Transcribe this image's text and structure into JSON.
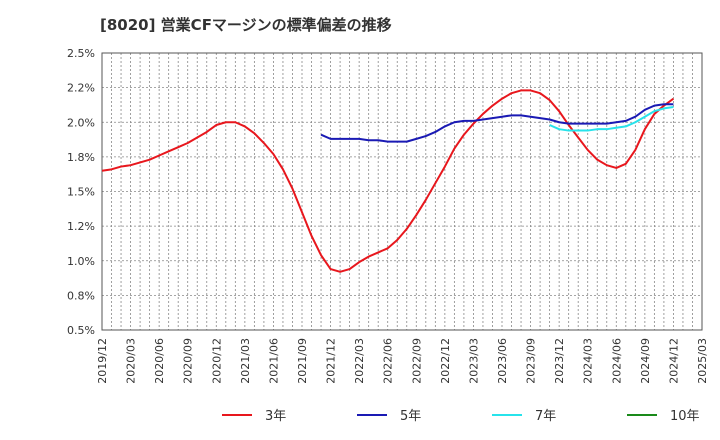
{
  "chart_data": {
    "type": "line",
    "title": "[8020]  営業CFマージンの標準偏差の推移",
    "xlabel": "",
    "ylabel": "",
    "ylim": [
      0.5,
      2.5
    ],
    "y_ticks": [
      "0.5%",
      "0.8%",
      "1.0%",
      "1.2%",
      "1.5%",
      "1.8%",
      "2.0%",
      "2.2%",
      "2.5%"
    ],
    "x_ticks": [
      "2019/12",
      "2020/03",
      "2020/06",
      "2020/09",
      "2020/12",
      "2021/03",
      "2021/06",
      "2021/09",
      "2021/12",
      "2022/03",
      "2022/06",
      "2022/09",
      "2022/12",
      "2023/03",
      "2023/06",
      "2023/09",
      "2023/12",
      "2024/03",
      "2024/06",
      "2024/09",
      "2024/12",
      "2025/03"
    ],
    "grid": true,
    "legend_position": "bottom",
    "series": [
      {
        "name": "3年",
        "color": "#e8171d",
        "points": [
          [
            "2019/12",
            1.65
          ],
          [
            "2020/01",
            1.66
          ],
          [
            "2020/02",
            1.68
          ],
          [
            "2020/03",
            1.69
          ],
          [
            "2020/04",
            1.71
          ],
          [
            "2020/05",
            1.73
          ],
          [
            "2020/06",
            1.76
          ],
          [
            "2020/07",
            1.79
          ],
          [
            "2020/08",
            1.82
          ],
          [
            "2020/09",
            1.85
          ],
          [
            "2020/10",
            1.89
          ],
          [
            "2020/11",
            1.93
          ],
          [
            "2020/12",
            1.98
          ],
          [
            "2021/01",
            2.0
          ],
          [
            "2021/02",
            2.0
          ],
          [
            "2021/03",
            1.97
          ],
          [
            "2021/04",
            1.92
          ],
          [
            "2021/05",
            1.85
          ],
          [
            "2021/06",
            1.77
          ],
          [
            "2021/07",
            1.66
          ],
          [
            "2021/08",
            1.52
          ],
          [
            "2021/09",
            1.35
          ],
          [
            "2021/10",
            1.18
          ],
          [
            "2021/11",
            1.04
          ],
          [
            "2021/12",
            0.94
          ],
          [
            "2022/01",
            0.92
          ],
          [
            "2022/02",
            0.94
          ],
          [
            "2022/03",
            0.99
          ],
          [
            "2022/04",
            1.03
          ],
          [
            "2022/05",
            1.06
          ],
          [
            "2022/06",
            1.09
          ],
          [
            "2022/07",
            1.15
          ],
          [
            "2022/08",
            1.23
          ],
          [
            "2022/09",
            1.33
          ],
          [
            "2022/10",
            1.44
          ],
          [
            "2022/11",
            1.56
          ],
          [
            "2022/12",
            1.68
          ],
          [
            "2023/01",
            1.81
          ],
          [
            "2023/02",
            1.91
          ],
          [
            "2023/03",
            1.99
          ],
          [
            "2023/04",
            2.06
          ],
          [
            "2023/05",
            2.12
          ],
          [
            "2023/06",
            2.17
          ],
          [
            "2023/07",
            2.21
          ],
          [
            "2023/08",
            2.23
          ],
          [
            "2023/09",
            2.23
          ],
          [
            "2023/10",
            2.21
          ],
          [
            "2023/11",
            2.16
          ],
          [
            "2023/12",
            2.08
          ],
          [
            "2024/01",
            1.98
          ],
          [
            "2024/02",
            1.89
          ],
          [
            "2024/03",
            1.8
          ],
          [
            "2024/04",
            1.73
          ],
          [
            "2024/05",
            1.69
          ],
          [
            "2024/06",
            1.67
          ],
          [
            "2024/07",
            1.7
          ],
          [
            "2024/08",
            1.8
          ],
          [
            "2024/09",
            1.95
          ],
          [
            "2024/10",
            2.06
          ],
          [
            "2024/11",
            2.12
          ],
          [
            "2024/12",
            2.17
          ]
        ]
      },
      {
        "name": "5年",
        "color": "#1a1ab4",
        "points": [
          [
            "2021/11",
            1.91
          ],
          [
            "2021/12",
            1.88
          ],
          [
            "2022/01",
            1.88
          ],
          [
            "2022/02",
            1.88
          ],
          [
            "2022/03",
            1.88
          ],
          [
            "2022/04",
            1.87
          ],
          [
            "2022/05",
            1.87
          ],
          [
            "2022/06",
            1.86
          ],
          [
            "2022/07",
            1.86
          ],
          [
            "2022/08",
            1.86
          ],
          [
            "2022/09",
            1.88
          ],
          [
            "2022/10",
            1.9
          ],
          [
            "2022/11",
            1.93
          ],
          [
            "2022/12",
            1.97
          ],
          [
            "2023/01",
            2.0
          ],
          [
            "2023/02",
            2.01
          ],
          [
            "2023/03",
            2.01
          ],
          [
            "2023/04",
            2.02
          ],
          [
            "2023/05",
            2.03
          ],
          [
            "2023/06",
            2.04
          ],
          [
            "2023/07",
            2.05
          ],
          [
            "2023/08",
            2.05
          ],
          [
            "2023/09",
            2.04
          ],
          [
            "2023/10",
            2.03
          ],
          [
            "2023/11",
            2.02
          ],
          [
            "2023/12",
            2.0
          ],
          [
            "2024/01",
            1.99
          ],
          [
            "2024/02",
            1.99
          ],
          [
            "2024/03",
            1.99
          ],
          [
            "2024/04",
            1.99
          ],
          [
            "2024/05",
            1.99
          ],
          [
            "2024/06",
            2.0
          ],
          [
            "2024/07",
            2.01
          ],
          [
            "2024/08",
            2.04
          ],
          [
            "2024/09",
            2.09
          ],
          [
            "2024/10",
            2.12
          ],
          [
            "2024/11",
            2.13
          ],
          [
            "2024/12",
            2.13
          ]
        ]
      },
      {
        "name": "7年",
        "color": "#27e3eb",
        "points": [
          [
            "2023/11",
            1.98
          ],
          [
            "2023/12",
            1.95
          ],
          [
            "2024/01",
            1.94
          ],
          [
            "2024/02",
            1.94
          ],
          [
            "2024/03",
            1.94
          ],
          [
            "2024/04",
            1.95
          ],
          [
            "2024/05",
            1.95
          ],
          [
            "2024/06",
            1.96
          ],
          [
            "2024/07",
            1.97
          ],
          [
            "2024/08",
            2.0
          ],
          [
            "2024/09",
            2.04
          ],
          [
            "2024/10",
            2.08
          ],
          [
            "2024/11",
            2.1
          ],
          [
            "2024/12",
            2.11
          ]
        ]
      },
      {
        "name": "10年",
        "color": "#1a8a1a",
        "points": []
      }
    ]
  }
}
